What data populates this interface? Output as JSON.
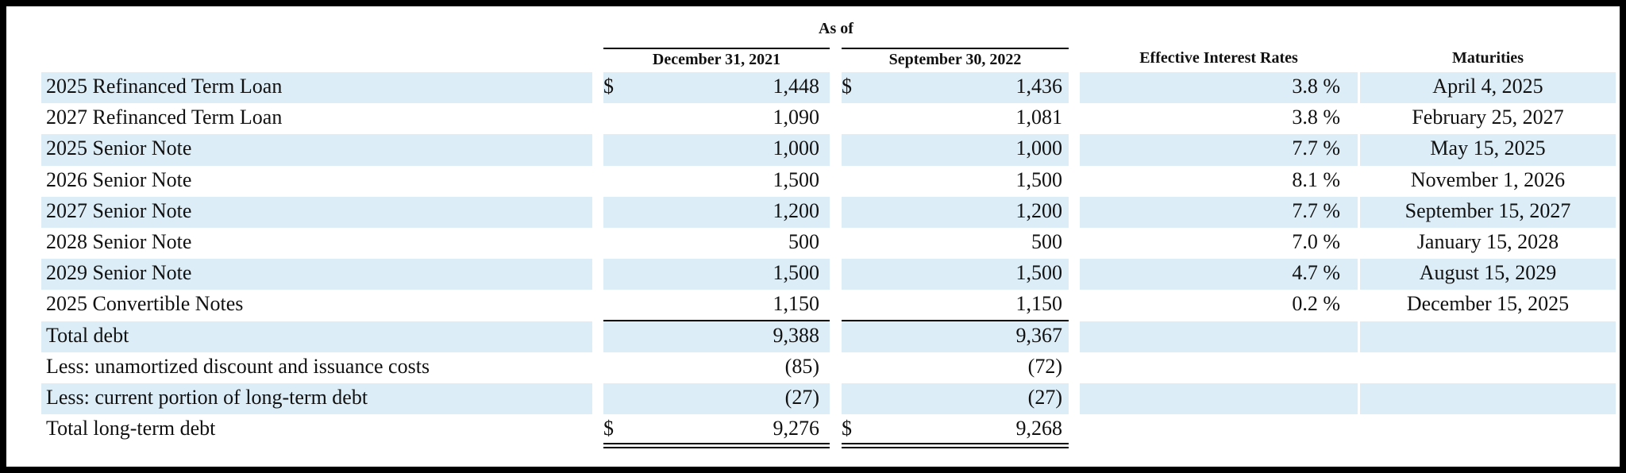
{
  "header": {
    "as_of": "As of",
    "col1": "December 31, 2021",
    "col2": "September 30, 2022",
    "col3": "Effective Interest Rates",
    "col4": "Maturities"
  },
  "currency_symbol": "$",
  "rows": [
    {
      "label": "2025 Refinanced Term Loan",
      "dollar": true,
      "v2021": "1,448",
      "v2022": "1,436",
      "rate": "3.8 %",
      "maturity": "April 4, 2025",
      "shade": true
    },
    {
      "label": "2027 Refinanced Term Loan",
      "dollar": false,
      "v2021": "1,090",
      "v2022": "1,081",
      "rate": "3.8 %",
      "maturity": "February 25, 2027",
      "shade": false
    },
    {
      "label": "2025 Senior Note",
      "dollar": false,
      "v2021": "1,000",
      "v2022": "1,000",
      "rate": "7.7 %",
      "maturity": "May 15, 2025",
      "shade": true
    },
    {
      "label": "2026 Senior Note",
      "dollar": false,
      "v2021": "1,500",
      "v2022": "1,500",
      "rate": "8.1 %",
      "maturity": "November 1, 2026",
      "shade": false
    },
    {
      "label": "2027 Senior Note",
      "dollar": false,
      "v2021": "1,200",
      "v2022": "1,200",
      "rate": "7.7 %",
      "maturity": "September 15, 2027",
      "shade": true
    },
    {
      "label": "2028 Senior Note",
      "dollar": false,
      "v2021": "500",
      "v2022": "500",
      "rate": "7.0 %",
      "maturity": "January 15, 2028",
      "shade": false
    },
    {
      "label": "2029 Senior Note",
      "dollar": false,
      "v2021": "1,500",
      "v2022": "1,500",
      "rate": "4.7 %",
      "maturity": "August 15, 2029",
      "shade": true
    },
    {
      "label": "2025 Convertible Notes",
      "dollar": false,
      "v2021": "1,150",
      "v2022": "1,150",
      "rate": "0.2 %",
      "maturity": "December 15, 2025",
      "shade": false
    },
    {
      "label": "Total debt",
      "dollar": false,
      "v2021": "9,388",
      "v2022": "9,367",
      "rate": "",
      "maturity": "",
      "shade": true
    },
    {
      "label": "Less: unamortized discount and issuance costs",
      "dollar": false,
      "v2021": "(85)",
      "v2022": "(72)",
      "rate": "",
      "maturity": "",
      "shade": false
    },
    {
      "label": "Less: current portion of long-term debt",
      "dollar": false,
      "v2021": "(27)",
      "v2022": "(27)",
      "rate": "",
      "maturity": "",
      "shade": true
    },
    {
      "label": "Total long-term debt",
      "dollar": true,
      "v2021": "9,276",
      "v2022": "9,268",
      "rate": "",
      "maturity": "",
      "shade": false
    }
  ]
}
